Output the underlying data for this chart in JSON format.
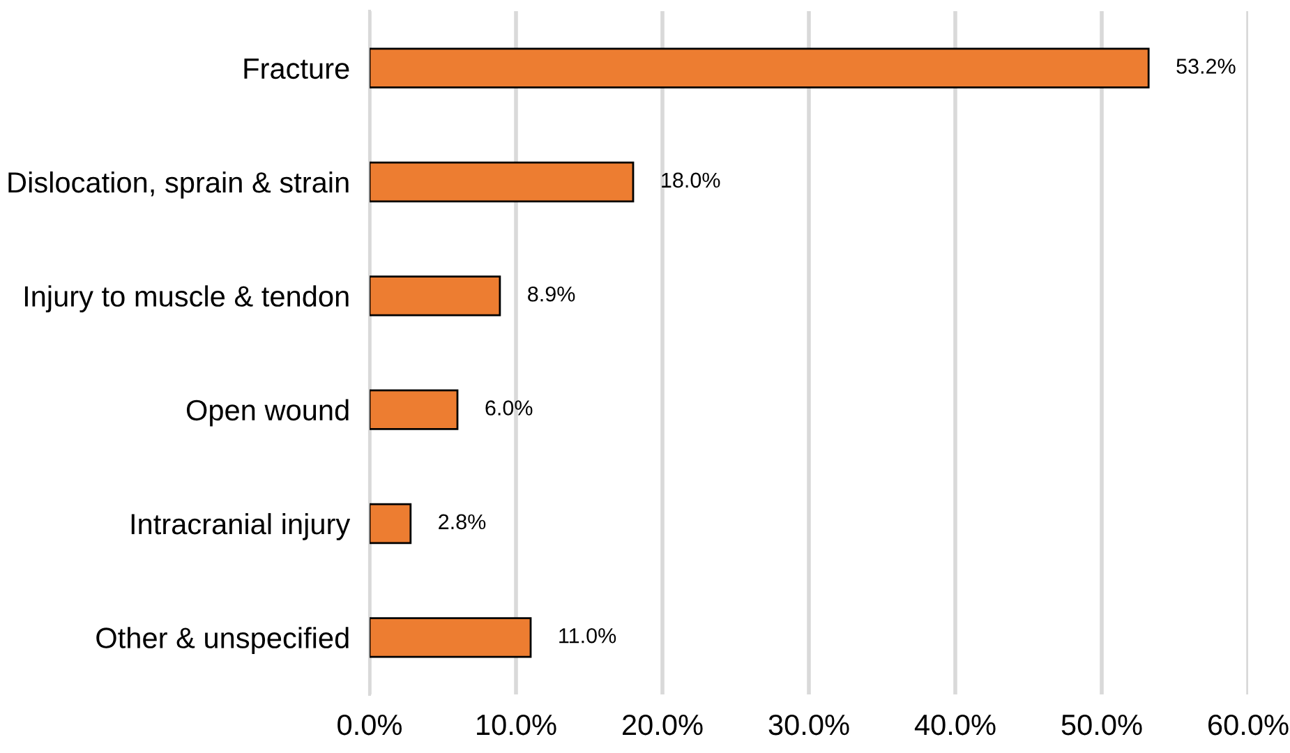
{
  "chart_data": {
    "type": "bar",
    "orientation": "horizontal",
    "categories": [
      "Fracture",
      "Dislocation, sprain & strain",
      "Injury to muscle & tendon",
      "Open wound",
      "Intracranial injury",
      "Other & unspecified"
    ],
    "values": [
      53.2,
      18.0,
      8.9,
      6.0,
      2.8,
      11.0
    ],
    "value_labels": [
      "53.2%",
      "18.0%",
      "8.9%",
      "6.0%",
      "2.8%",
      "11.0%"
    ],
    "color": "#ed7d31",
    "xlim": [
      0,
      60
    ],
    "xticks": [
      {
        "value": 0,
        "label": "0.0%"
      },
      {
        "value": 10,
        "label": "10.0%"
      },
      {
        "value": 20,
        "label": "20.0%"
      },
      {
        "value": 30,
        "label": "30.0%"
      },
      {
        "value": 40,
        "label": "40.0%"
      },
      {
        "value": 50,
        "label": "50.0%"
      },
      {
        "value": 60,
        "label": "60.0%"
      }
    ],
    "grid": "x",
    "legend": false
  }
}
